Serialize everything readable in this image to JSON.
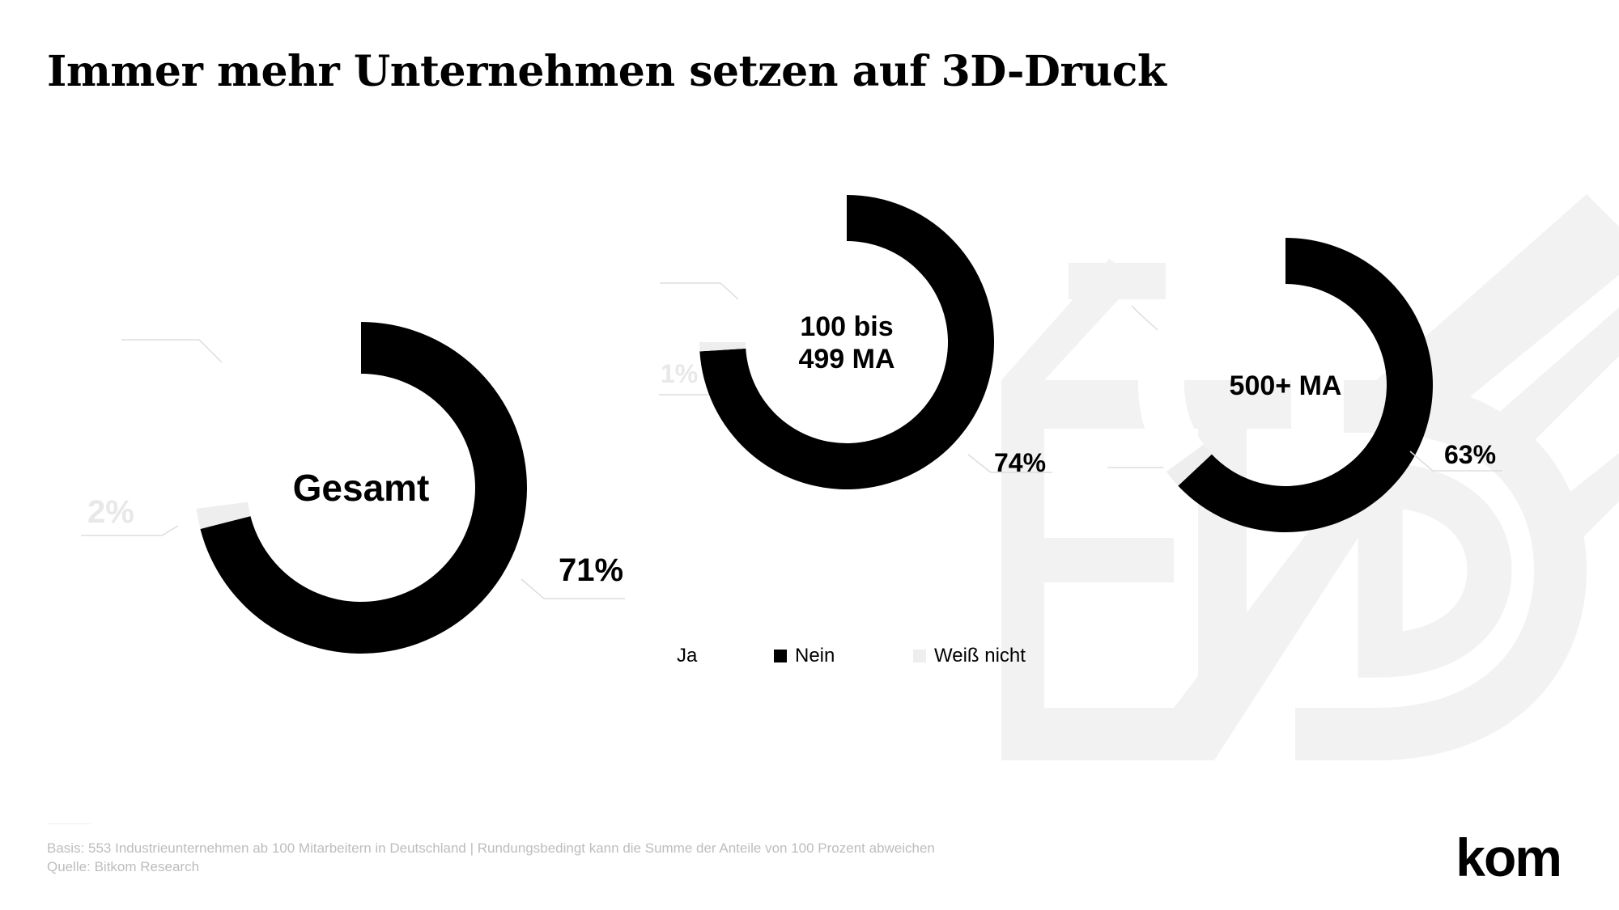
{
  "title": "Immer mehr Unternehmen setzen auf 3D-Druck",
  "colors": {
    "ja": "#ffffff",
    "nein": "#000000",
    "weiss_nicht": "#eeeeee",
    "leader": "#dddddd",
    "watermark": "#f2f2f2"
  },
  "chart_data": [
    {
      "type": "pie",
      "center_label": "Gesamt",
      "slices": [
        {
          "name": "Ja",
          "value": 27,
          "label": ""
        },
        {
          "name": "Nein",
          "value": 71,
          "label": "71%"
        },
        {
          "name": "Weiß nicht",
          "value": 2,
          "label": "2%"
        }
      ]
    },
    {
      "type": "pie",
      "center_label": [
        "100 bis",
        "499 MA"
      ],
      "slices": [
        {
          "name": "Ja",
          "value": 25,
          "label": ""
        },
        {
          "name": "Nein",
          "value": 74,
          "label": "74%"
        },
        {
          "name": "Weiß nicht",
          "value": 1,
          "label": "1%"
        }
      ]
    },
    {
      "type": "pie",
      "center_label": "500+ MA",
      "slices": [
        {
          "name": "Ja",
          "value": 35,
          "label": ""
        },
        {
          "name": "Nein",
          "value": 63,
          "label": "63%"
        },
        {
          "name": "Weiß nicht",
          "value": 2,
          "label": ""
        }
      ]
    }
  ],
  "legend": [
    {
      "label": "Ja",
      "color": "#ffffff"
    },
    {
      "label": "Nein",
      "color": "#000000"
    },
    {
      "label": "Weiß nicht",
      "color": "#eeeeee"
    }
  ],
  "footer": {
    "basis": "Basis: 553 Industrieunternehmen ab 100 Mitarbeitern in Deutschland | Rundungsbedingt kann die Summe der Anteile von 100 Prozent abweichen",
    "quelle": "Quelle: Bitkom Research"
  },
  "logo": "kom"
}
